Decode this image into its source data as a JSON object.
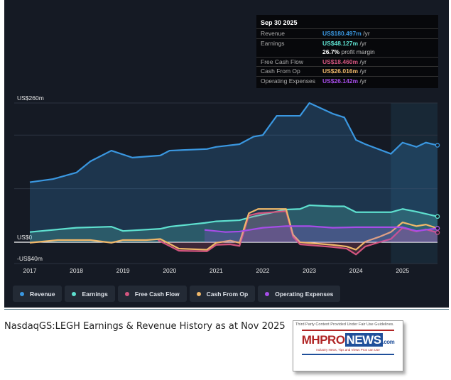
{
  "chart_data": {
    "type": "area",
    "ylim": [
      -40,
      260
    ],
    "xlim": [
      2017,
      2025.75
    ],
    "y_tick_labels": [
      "US$260m",
      "US$0",
      "-US$40m"
    ],
    "y_ticks": [
      260,
      0,
      -40
    ],
    "gridlines": [
      260,
      200,
      100,
      0,
      -40
    ],
    "x_tick_labels": [
      "2017",
      "2018",
      "2019",
      "2020",
      "2021",
      "2022",
      "2023",
      "2024",
      "2025"
    ],
    "x_ticks": [
      2017,
      2018,
      2019,
      2020,
      2021,
      2022,
      2023,
      2024,
      2025
    ],
    "forecast_shade_start": 2024.75,
    "series": [
      {
        "name": "Revenue",
        "color": "#3a97e0",
        "fill": true,
        "points": [
          [
            2017,
            112
          ],
          [
            2017.5,
            118
          ],
          [
            2018,
            130
          ],
          [
            2018.3,
            151
          ],
          [
            2018.75,
            171
          ],
          [
            2019.2,
            158
          ],
          [
            2019.8,
            162
          ],
          [
            2020,
            171
          ],
          [
            2020.8,
            174
          ],
          [
            2021,
            178
          ],
          [
            2021.5,
            183
          ],
          [
            2021.8,
            197
          ],
          [
            2022,
            200
          ],
          [
            2022.3,
            236
          ],
          [
            2022.8,
            236
          ],
          [
            2023,
            260
          ],
          [
            2023.5,
            240
          ],
          [
            2023.75,
            233
          ],
          [
            2024,
            191
          ],
          [
            2024.2,
            183
          ],
          [
            2024.75,
            165
          ],
          [
            2025,
            186
          ],
          [
            2025.3,
            178
          ],
          [
            2025.5,
            186
          ],
          [
            2025.75,
            181
          ]
        ]
      },
      {
        "name": "Earnings",
        "color": "#5ee0cf",
        "fill": true,
        "points": [
          [
            2017,
            19
          ],
          [
            2018,
            27
          ],
          [
            2018.75,
            29
          ],
          [
            2019,
            21
          ],
          [
            2019.8,
            25
          ],
          [
            2020,
            29
          ],
          [
            2020.75,
            36
          ],
          [
            2021,
            39
          ],
          [
            2021.5,
            41
          ],
          [
            2021.8,
            48
          ],
          [
            2022.5,
            61
          ],
          [
            2022.8,
            62
          ],
          [
            2023,
            69
          ],
          [
            2023.5,
            67
          ],
          [
            2023.75,
            67
          ],
          [
            2024,
            56
          ],
          [
            2024.5,
            56
          ],
          [
            2024.75,
            56
          ],
          [
            2025,
            62
          ],
          [
            2025.3,
            57
          ],
          [
            2025.75,
            48
          ]
        ]
      },
      {
        "name": "Free Cash Flow",
        "color": "#d4557f",
        "fill": true,
        "points": [
          [
            2019.75,
            4
          ],
          [
            2020.2,
            -16
          ],
          [
            2020.8,
            -17
          ],
          [
            2021,
            -5
          ],
          [
            2021.3,
            -4
          ],
          [
            2021.5,
            -7
          ],
          [
            2021.7,
            50
          ],
          [
            2021.9,
            54
          ],
          [
            2022.5,
            58
          ],
          [
            2022.65,
            10
          ],
          [
            2022.8,
            -4
          ],
          [
            2023.5,
            -9
          ],
          [
            2023.8,
            -12
          ],
          [
            2024,
            -23
          ],
          [
            2024.2,
            -8
          ],
          [
            2024.5,
            0
          ],
          [
            2024.75,
            6
          ],
          [
            2025,
            27
          ],
          [
            2025.3,
            20
          ],
          [
            2025.5,
            24
          ],
          [
            2025.75,
            18
          ]
        ]
      },
      {
        "name": "Cash From Op",
        "color": "#f0b86a",
        "fill": false,
        "points": [
          [
            2017,
            -1
          ],
          [
            2017.6,
            4
          ],
          [
            2018.3,
            4
          ],
          [
            2018.75,
            -1
          ],
          [
            2019,
            4
          ],
          [
            2019.5,
            4
          ],
          [
            2019.8,
            6
          ],
          [
            2020.2,
            -12
          ],
          [
            2020.8,
            -14
          ],
          [
            2021,
            -1
          ],
          [
            2021.3,
            3
          ],
          [
            2021.5,
            -1
          ],
          [
            2021.7,
            54
          ],
          [
            2021.9,
            62
          ],
          [
            2022.5,
            62
          ],
          [
            2022.65,
            14
          ],
          [
            2022.8,
            0
          ],
          [
            2023.5,
            -5
          ],
          [
            2023.8,
            -8
          ],
          [
            2024,
            -14
          ],
          [
            2024.2,
            1
          ],
          [
            2024.5,
            10
          ],
          [
            2024.75,
            19
          ],
          [
            2025,
            37
          ],
          [
            2025.3,
            30
          ],
          [
            2025.5,
            33
          ],
          [
            2025.75,
            26
          ]
        ]
      },
      {
        "name": "Operating Expenses",
        "color": "#a64de8",
        "fill": true,
        "points": [
          [
            2020.75,
            23
          ],
          [
            2021.2,
            19
          ],
          [
            2021.5,
            20
          ],
          [
            2022,
            27
          ],
          [
            2022.5,
            30
          ],
          [
            2023,
            30
          ],
          [
            2023.5,
            27
          ],
          [
            2024,
            28
          ],
          [
            2024.75,
            28
          ],
          [
            2025,
            28
          ],
          [
            2025.3,
            21
          ],
          [
            2025.75,
            26
          ]
        ]
      }
    ]
  },
  "tooltip": {
    "date": "Sep 30 2025",
    "rows": [
      {
        "label": "Revenue",
        "value": "US$180.497m",
        "unit": "/yr",
        "color": "#3a97e0"
      },
      {
        "label": "Earnings",
        "value": "US$48.127m",
        "unit": "/yr",
        "color": "#5ee0cf"
      },
      {
        "label": "",
        "value": "26.7%",
        "unit": "profit margin",
        "color": "#ffffff"
      },
      {
        "label": "Free Cash Flow",
        "value": "US$18.460m",
        "unit": "/yr",
        "color": "#d4557f"
      },
      {
        "label": "Cash From Op",
        "value": "US$26.016m",
        "unit": "/yr",
        "color": "#f0b86a"
      },
      {
        "label": "Operating Expenses",
        "value": "US$26.142m",
        "unit": "/yr",
        "color": "#a64de8"
      }
    ]
  },
  "legend": [
    {
      "label": "Revenue",
      "color": "#3a97e0"
    },
    {
      "label": "Earnings",
      "color": "#5ee0cf"
    },
    {
      "label": "Free Cash Flow",
      "color": "#d4557f"
    },
    {
      "label": "Cash From Op",
      "color": "#f0b86a"
    },
    {
      "label": "Operating Expenses",
      "color": "#a64de8"
    }
  ],
  "caption": "NasdaqGS:LEGH Earnings & Revenue History as at Nov 2025",
  "logo": {
    "fair_use": "Third Party Content Provided Under Fair Use Guidelines.",
    "mh": "MHPRO",
    "news": "NEWS",
    "com": ".com",
    "tagline": "Industry News, Tips and Views Pros can Use"
  }
}
